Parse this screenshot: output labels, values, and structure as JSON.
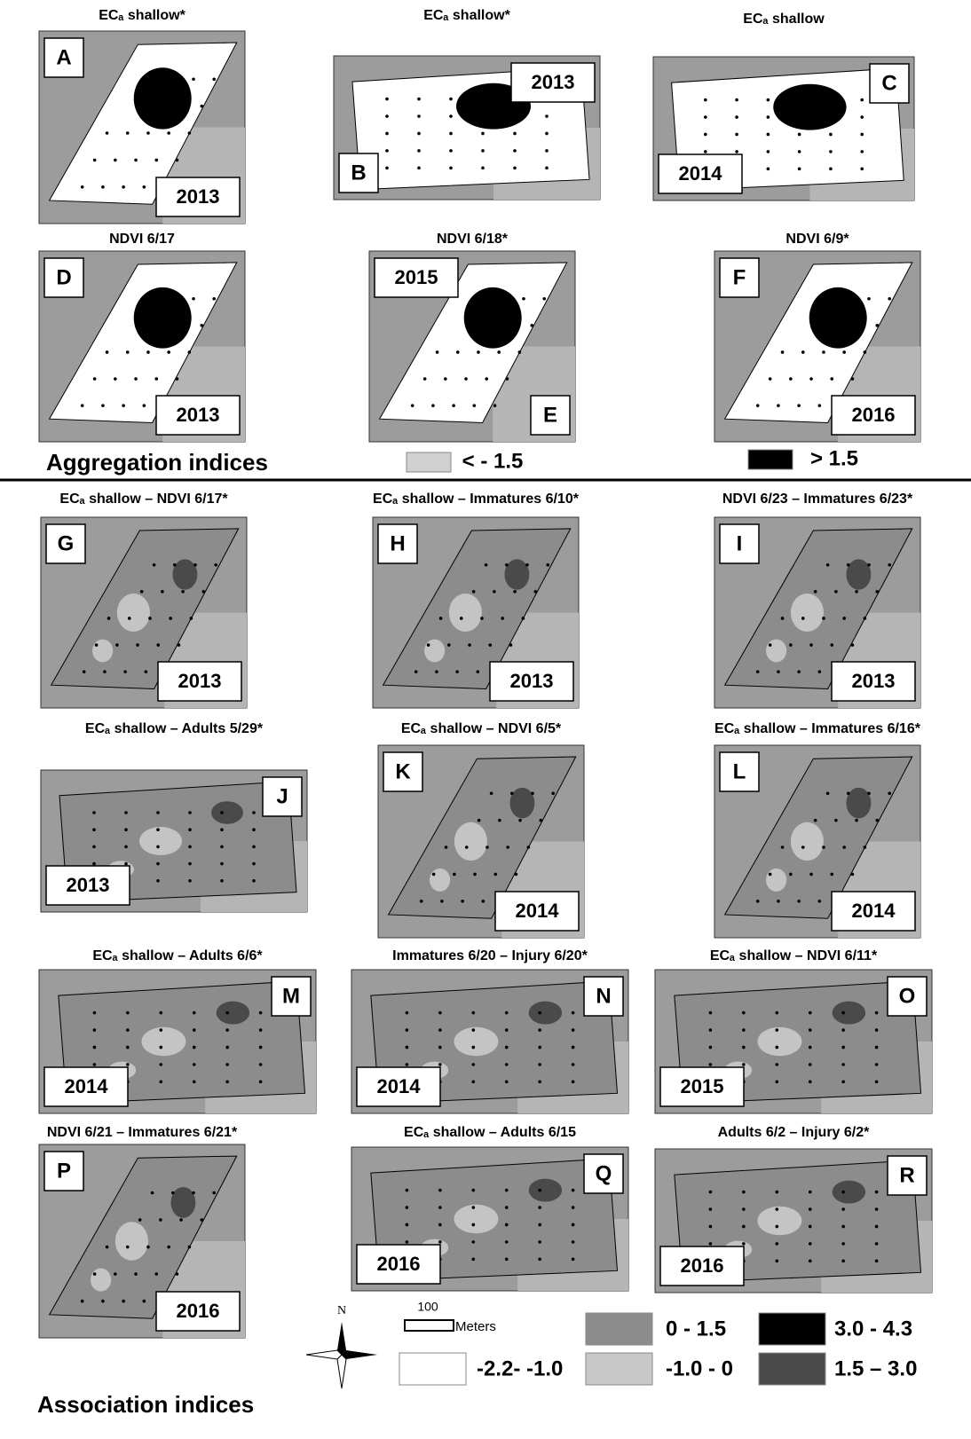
{
  "sections": {
    "aggregation": "Aggregation indices",
    "association": "Association indices"
  },
  "panels": [
    {
      "letter": "A",
      "title": "ECₐ shallow*",
      "year": "2013"
    },
    {
      "letter": "B",
      "title": "ECₐ shallow*",
      "year": "2013"
    },
    {
      "letter": "C",
      "title": "ECₐ shallow",
      "year": "2014"
    },
    {
      "letter": "D",
      "title": "NDVI 6/17",
      "year": "2013"
    },
    {
      "letter": "E",
      "title": "NDVI 6/18*",
      "year": "2015"
    },
    {
      "letter": "F",
      "title": "NDVI 6/9*",
      "year": "2016"
    },
    {
      "letter": "G",
      "title": "ECₐ shallow – NDVI 6/17*",
      "year": "2013"
    },
    {
      "letter": "H",
      "title": "ECₐ shallow – Immatures 6/10*",
      "year": "2013"
    },
    {
      "letter": "I",
      "title": "NDVI 6/23 – Immatures 6/23*",
      "year": "2013"
    },
    {
      "letter": "J",
      "title": "ECₐ shallow – Adults 5/29*",
      "year": "2013"
    },
    {
      "letter": "K",
      "title": "ECₐ shallow – NDVI 6/5*",
      "year": "2014"
    },
    {
      "letter": "L",
      "title": "ECₐ shallow – Immatures 6/16*",
      "year": "2014"
    },
    {
      "letter": "M",
      "title": "ECₐ shallow – Adults 6/6*",
      "year": "2014"
    },
    {
      "letter": "N",
      "title": "Immatures 6/20 – Injury 6/20*",
      "year": "2014"
    },
    {
      "letter": "O",
      "title": "ECₐ shallow – NDVI 6/11*",
      "year": "2015"
    },
    {
      "letter": "P",
      "title": "NDVI 6/21 – Immatures 6/21*",
      "year": "2016"
    },
    {
      "letter": "Q",
      "title": "ECₐ shallow – Adults 6/15",
      "year": "2016"
    },
    {
      "letter": "R",
      "title": "Adults 6/2 – Injury 6/2*",
      "year": "2016"
    }
  ],
  "aggregation_legend": [
    "< - 1.5",
    "> 1.5"
  ],
  "association_legend": [
    "0 - 1.5",
    "3.0 - 4.3",
    "-2.2- -1.0",
    "-1.0 - 0",
    "1.5 – 3.0"
  ],
  "scale_bar": {
    "distance": "100",
    "unit": "Meters"
  },
  "north_arrow": "N"
}
